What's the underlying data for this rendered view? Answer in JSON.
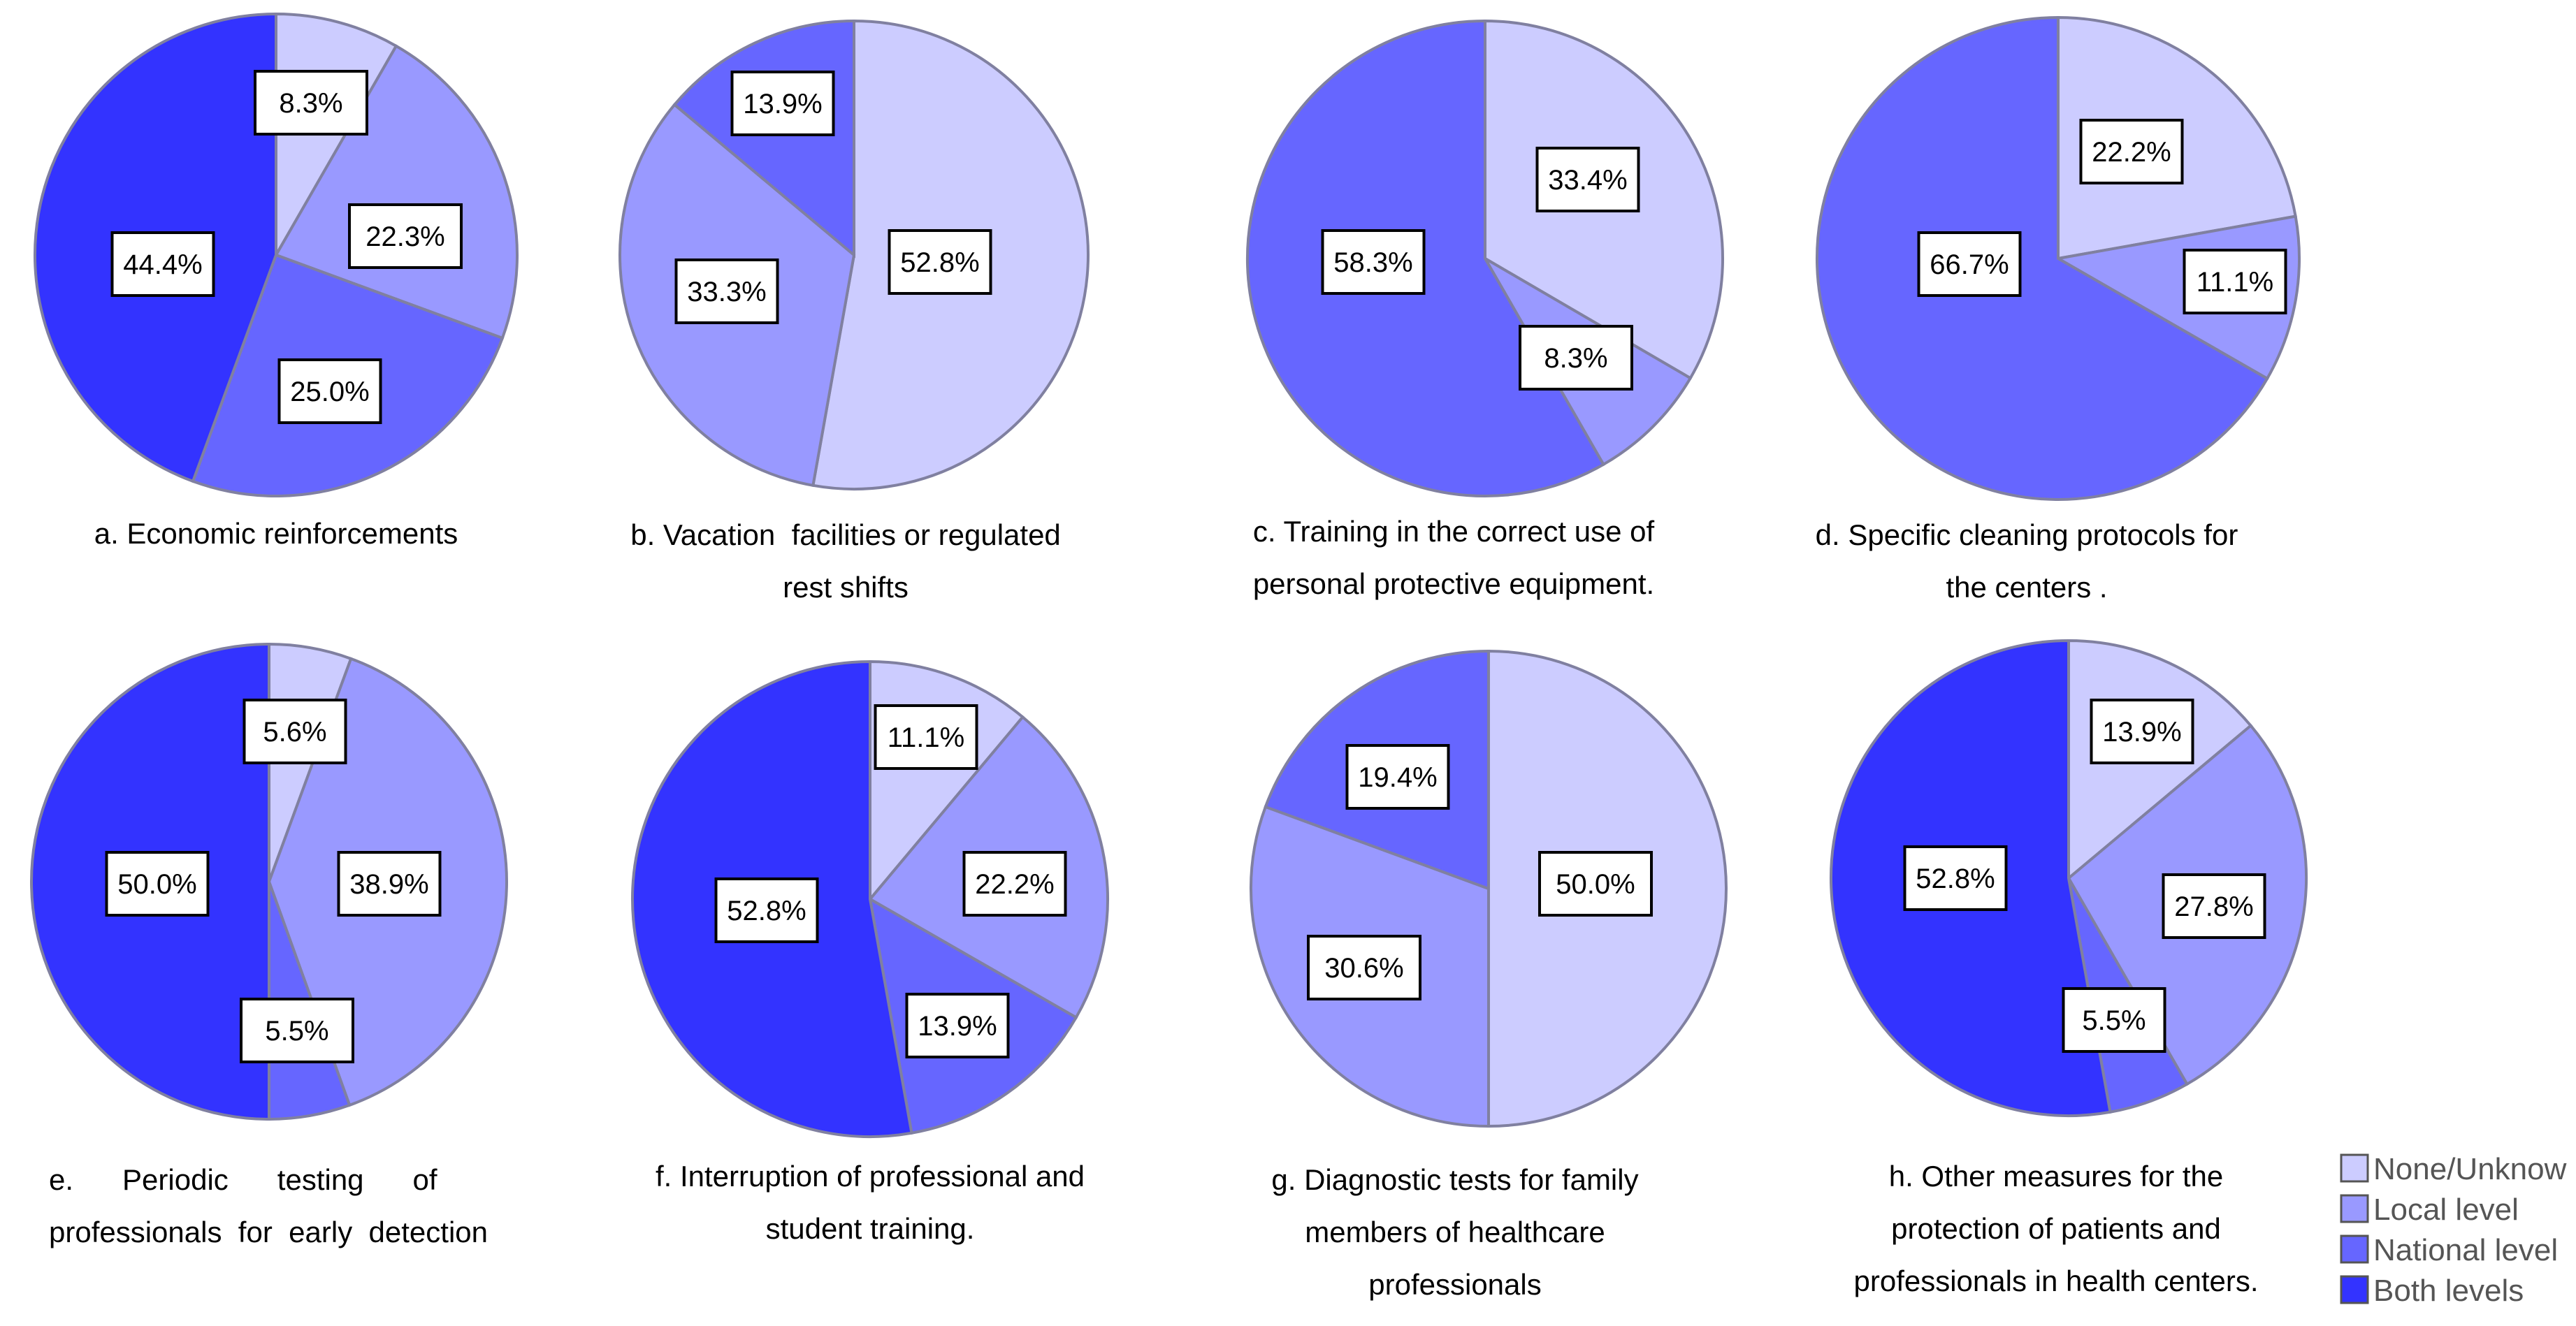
{
  "colors": {
    "none": "#ccccff",
    "local": "#9999ff",
    "national": "#6666ff",
    "both": "#3333ff",
    "edge": "#8080a0",
    "label_border": "#000000",
    "text": "#000000"
  },
  "legend": {
    "none_label": "None/Unknow",
    "local_label": "Local level",
    "national_label": "National level",
    "both_label": "Both levels"
  },
  "chart_data": [
    {
      "type": "pie",
      "caption": [
        "a. Economic reinforcements"
      ],
      "slices": [
        {
          "category": "None/Unknow",
          "value": 8.3,
          "label": "8.3%"
        },
        {
          "category": "Local level",
          "value": 22.3,
          "label": "22.3%"
        },
        {
          "category": "National level",
          "value": 25.0,
          "label": "25.0%"
        },
        {
          "category": "Both levels",
          "value": 44.4,
          "label": "44.4%"
        }
      ]
    },
    {
      "type": "pie",
      "caption": [
        "b. Vacation  facilities or regulated",
        "rest shifts"
      ],
      "slices": [
        {
          "category": "None/Unknow",
          "value": 52.8,
          "label": "52.8%"
        },
        {
          "category": "Local level",
          "value": 33.3,
          "label": "33.3%"
        },
        {
          "category": "National level",
          "value": 13.9,
          "label": "13.9%"
        }
      ]
    },
    {
      "type": "pie",
      "caption": [
        "c. Training in the correct use of",
        "personal protective equipment."
      ],
      "slices": [
        {
          "category": "None/Unknow",
          "value": 33.4,
          "label": "33.4%"
        },
        {
          "category": "Local level",
          "value": 8.3,
          "label": "8.3%"
        },
        {
          "category": "National level",
          "value": 58.3,
          "label": "58.3%"
        }
      ]
    },
    {
      "type": "pie",
      "caption": [
        "d. Specific cleaning protocols for",
        "the centers ."
      ],
      "slices": [
        {
          "category": "None/Unknow",
          "value": 22.2,
          "label": "22.2%"
        },
        {
          "category": "Local level",
          "value": 11.1,
          "label": "11.1%"
        },
        {
          "category": "National level",
          "value": 66.7,
          "label": "66.7%"
        }
      ]
    },
    {
      "type": "pie",
      "caption": [
        "e.      Periodic      testing      of",
        "professionals  for  early  detection"
      ],
      "slices": [
        {
          "category": "None/Unknow",
          "value": 5.6,
          "label": "5.6%"
        },
        {
          "category": "Local level",
          "value": 38.9,
          "label": "38.9%"
        },
        {
          "category": "National level",
          "value": 5.5,
          "label": "5.5%"
        },
        {
          "category": "Both levels",
          "value": 50.0,
          "label": "50.0%"
        }
      ]
    },
    {
      "type": "pie",
      "caption": [
        "f. Interruption of professional and",
        "student training."
      ],
      "slices": [
        {
          "category": "None/Unknow",
          "value": 11.1,
          "label": "11.1%"
        },
        {
          "category": "Local level",
          "value": 22.2,
          "label": "22.2%"
        },
        {
          "category": "National level",
          "value": 13.9,
          "label": "13.9%"
        },
        {
          "category": "Both levels",
          "value": 52.8,
          "label": "52.8%"
        }
      ]
    },
    {
      "type": "pie",
      "caption": [
        "g. Diagnostic tests for family",
        "members of healthcare",
        "professionals"
      ],
      "slices": [
        {
          "category": "None/Unknow",
          "value": 50.0,
          "label": "50.0%"
        },
        {
          "category": "Local level",
          "value": 30.6,
          "label": "30.6%"
        },
        {
          "category": "National level",
          "value": 19.4,
          "label": "19.4%"
        }
      ]
    },
    {
      "type": "pie",
      "caption": [
        "h. Other measures for the",
        "protection of patients and",
        "professionals in health centers."
      ],
      "slices": [
        {
          "category": "None/Unknow",
          "value": 13.9,
          "label": "13.9%"
        },
        {
          "category": "Local level",
          "value": 27.8,
          "label": "27.8%"
        },
        {
          "category": "National level",
          "value": 5.5,
          "label": "5.5%"
        },
        {
          "category": "Both levels",
          "value": 52.8,
          "label": "52.8%"
        }
      ]
    }
  ]
}
